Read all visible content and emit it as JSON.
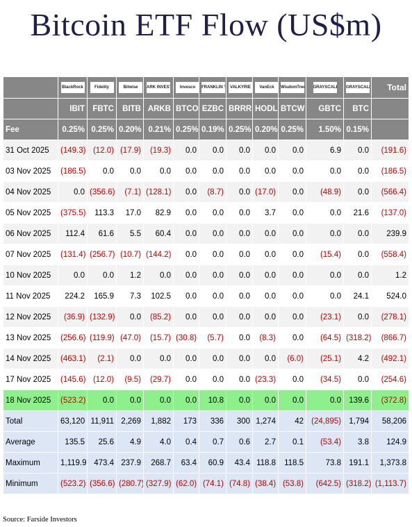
{
  "title": "Bitcoin ETF Flow (US$m)",
  "source": "Source: Farside Investors",
  "logos": [
    "BlackRock",
    "Fidelity",
    "Bitwise",
    "ARK INVEST",
    "Invesco",
    "FRANKLIN TEMPLETON",
    "VALKYRIE",
    "VanEck",
    "WisdomTree",
    "GRAYSCALE",
    "GRAYSCALE"
  ],
  "total_header": "Total",
  "tickers": [
    "IBIT",
    "FBTC",
    "BITB",
    "ARKB",
    "BTCO",
    "EZBC",
    "BRRR",
    "HODL",
    "BTCW",
    "GBTC",
    "BTC"
  ],
  "fee": {
    "label": "Fee",
    "values": [
      "0.25%",
      "0.25%",
      "0.20%",
      "0.21%",
      "0.25%",
      "0.19%",
      "0.25%",
      "0.20%",
      "0.25%",
      "1.50%",
      "0.15%"
    ]
  },
  "rows": [
    {
      "date": "31 Oct 2025",
      "values": [
        "(149.3)",
        "(12.0)",
        "(17.9)",
        "(19.3)",
        "0.0",
        "0.0",
        "0.0",
        "0.0",
        "0.0",
        "6.9",
        "0.0",
        "(191.6)"
      ]
    },
    {
      "date": "03 Nov 2025",
      "values": [
        "(186.5)",
        "0.0",
        "0.0",
        "0.0",
        "0.0",
        "0.0",
        "0.0",
        "0.0",
        "0.0",
        "0.0",
        "0.0",
        "(186.5)"
      ]
    },
    {
      "date": "04 Nov 2025",
      "values": [
        "0.0",
        "(356.6)",
        "(7.1)",
        "(128.1)",
        "0.0",
        "(8.7)",
        "0.0",
        "(17.0)",
        "0.0",
        "(48.9)",
        "0.0",
        "(566.4)"
      ]
    },
    {
      "date": "05 Nov 2025",
      "values": [
        "(375.5)",
        "113.3",
        "17.0",
        "82.9",
        "0.0",
        "0.0",
        "0.0",
        "3.7",
        "0.0",
        "0.0",
        "21.6",
        "(137.0)"
      ]
    },
    {
      "date": "06 Nov 2025",
      "values": [
        "112.4",
        "61.6",
        "5.5",
        "60.4",
        "0.0",
        "0.0",
        "0.0",
        "0.0",
        "0.0",
        "0.0",
        "0.0",
        "239.9"
      ]
    },
    {
      "date": "07 Nov 2025",
      "values": [
        "(131.4)",
        "(256.7)",
        "(10.7)",
        "(144.2)",
        "0.0",
        "0.0",
        "0.0",
        "0.0",
        "0.0",
        "(15.4)",
        "0.0",
        "(558.4)"
      ]
    },
    {
      "date": "10 Nov 2025",
      "values": [
        "0.0",
        "0.0",
        "1.2",
        "0.0",
        "0.0",
        "0.0",
        "0.0",
        "0.0",
        "0.0",
        "0.0",
        "0.0",
        "1.2"
      ]
    },
    {
      "date": "11 Nov 2025",
      "values": [
        "224.2",
        "165.9",
        "7.3",
        "102.5",
        "0.0",
        "0.0",
        "0.0",
        "0.0",
        "0.0",
        "0.0",
        "24.1",
        "524.0"
      ]
    },
    {
      "date": "12 Nov 2025",
      "values": [
        "(36.9)",
        "(132.9)",
        "0.0",
        "(85.2)",
        "0.0",
        "0.0",
        "0.0",
        "0.0",
        "0.0",
        "(23.1)",
        "0.0",
        "(278.1)"
      ]
    },
    {
      "date": "13 Nov 2025",
      "values": [
        "(256.6)",
        "(119.9)",
        "(47.0)",
        "(15.7)",
        "(30.8)",
        "(5.7)",
        "0.0",
        "(8.3)",
        "0.0",
        "(64.5)",
        "(318.2)",
        "(866.7)"
      ]
    },
    {
      "date": "14 Nov 2025",
      "values": [
        "(463.1)",
        "(2.1)",
        "0.0",
        "0.0",
        "0.0",
        "0.0",
        "0.0",
        "0.0",
        "(6.0)",
        "(25.1)",
        "4.2",
        "(492.1)"
      ]
    },
    {
      "date": "17 Nov 2025",
      "values": [
        "(145.6)",
        "(12.0)",
        "(9.5)",
        "(29.7)",
        "0.0",
        "0.0",
        "0.0",
        "(23.3)",
        "0.0",
        "(34.5)",
        "0.0",
        "(254.6)"
      ]
    },
    {
      "date": "18 Nov 2025",
      "values": [
        "(523.2)",
        "0.0",
        "0.0",
        "0.0",
        "0.0",
        "10.8",
        "0.0",
        "0.0",
        "0.0",
        "0.0",
        "139.6",
        "(372.8)"
      ]
    }
  ],
  "stats": [
    {
      "label": "Total",
      "values": [
        "63,120",
        "11,911",
        "2,269",
        "1,882",
        "173",
        "336",
        "300",
        "1,274",
        "42",
        "(24,895)",
        "1,794",
        "58,206"
      ]
    },
    {
      "label": "Average",
      "values": [
        "135.5",
        "25.6",
        "4.9",
        "4.0",
        "0.4",
        "0.7",
        "0.6",
        "2.7",
        "0.1",
        "(53.4)",
        "3.8",
        "124.9"
      ]
    },
    {
      "label": "Maximum",
      "values": [
        "1,119.9",
        "473.4",
        "237.9",
        "268.7",
        "63.4",
        "60.9",
        "43.4",
        "118.8",
        "118.5",
        "73.8",
        "191.1",
        "1,373.8"
      ]
    },
    {
      "label": "Minimum",
      "values": [
        "(523.2)",
        "(356.6)",
        "(280.7)",
        "(327.9)",
        "(62.0)",
        "(74.1)",
        "(74.8)",
        "(38.4)",
        "(53.8)",
        "(642.5)",
        "(318.2)",
        "(1,113.7)"
      ]
    }
  ],
  "colors": {
    "header_gray": "#878787",
    "row_stripe": "#f2f2f2",
    "highlight_green": "#8ef08a",
    "stats_blue": "#dde6f4",
    "negative_red": "#c00000",
    "title_navy": "#1f1f4a"
  }
}
